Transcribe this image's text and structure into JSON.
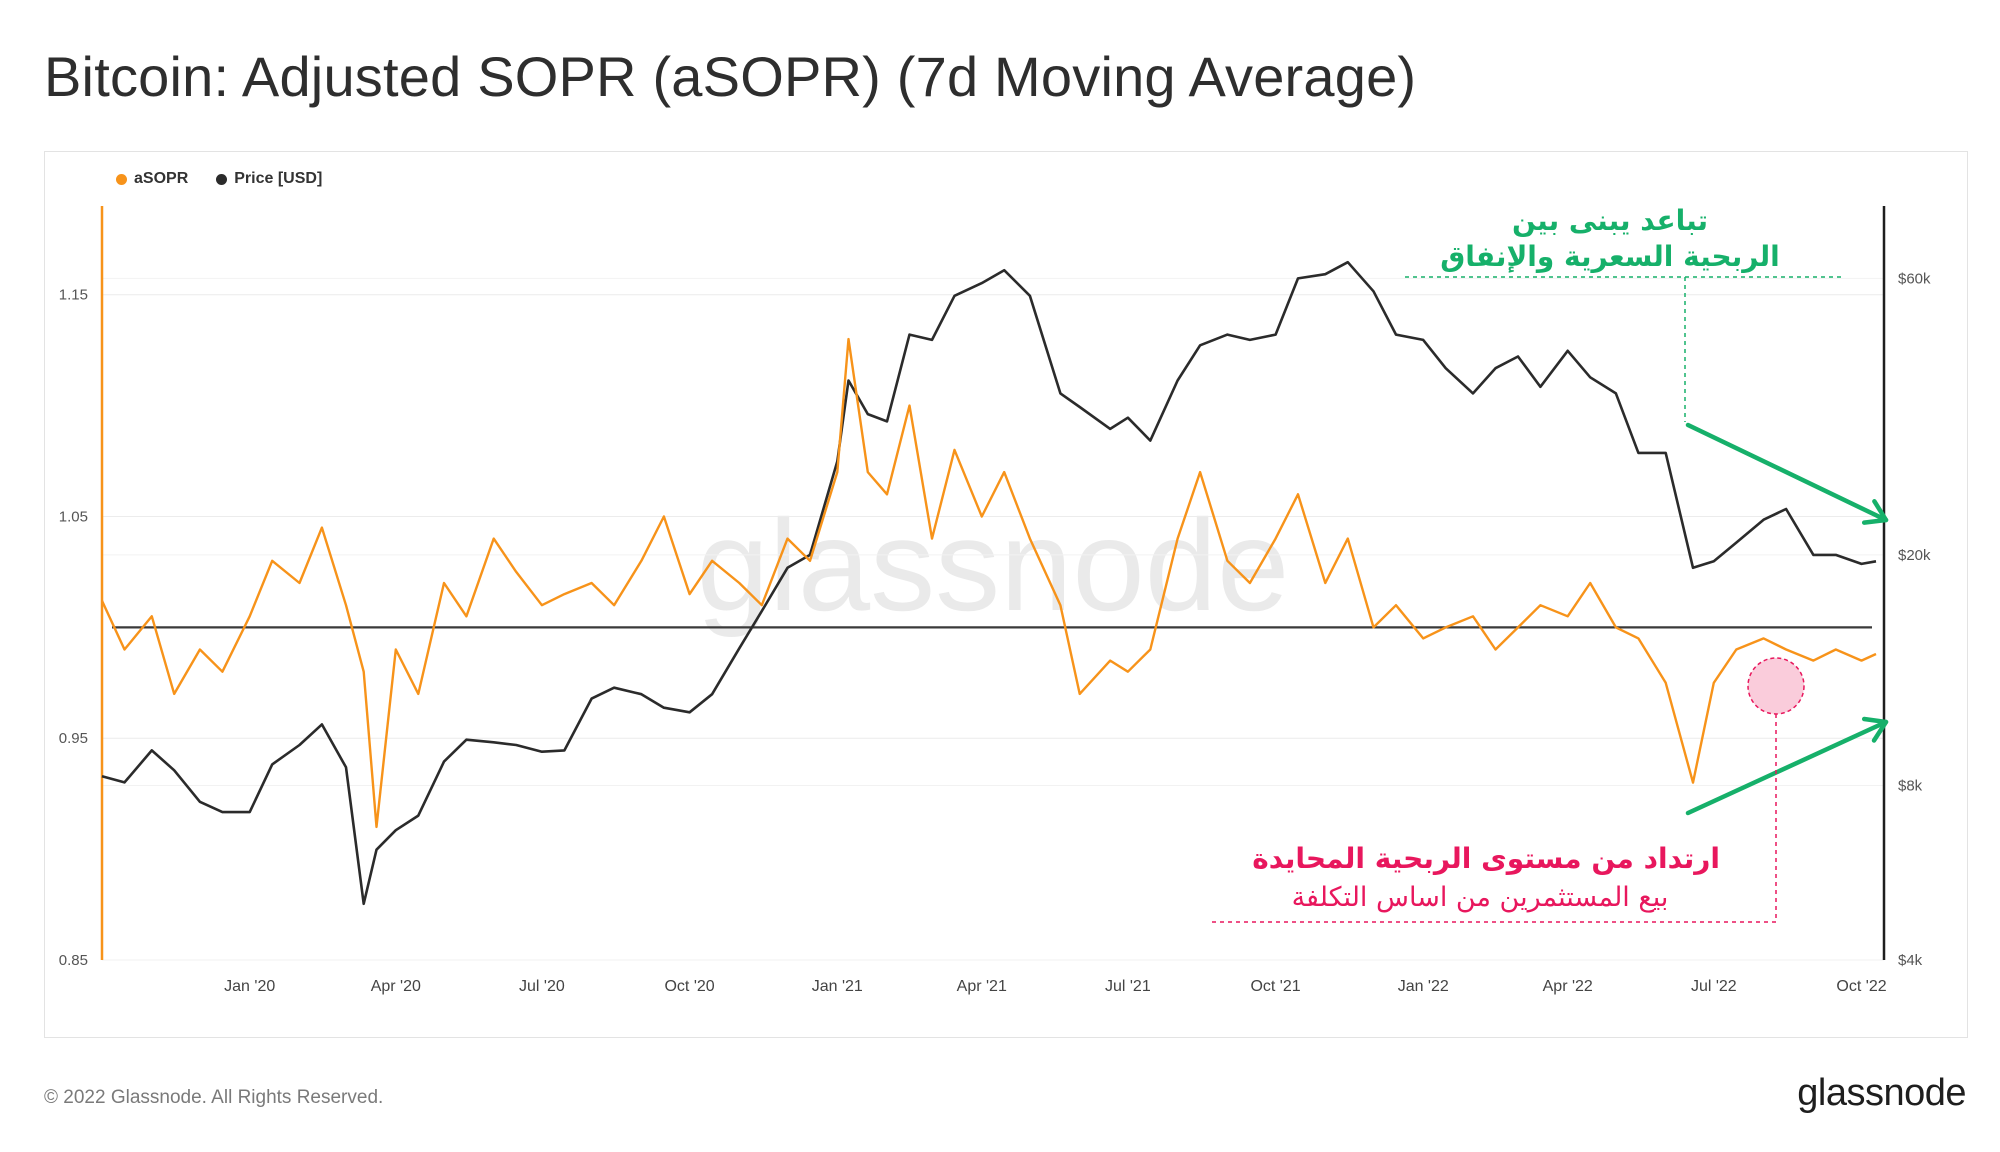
{
  "title": "Bitcoin: Adjusted SOPR (aSOPR) (7d Moving Average)",
  "footer": {
    "copyright": "© 2022 Glassnode. All Rights Reserved.",
    "logo": "glassnode"
  },
  "watermark": "glassnode",
  "legend": [
    {
      "label": "aSOPR",
      "color": "#f7931a"
    },
    {
      "label": "Price [USD]",
      "color": "#2b2b2b"
    }
  ],
  "annotations": {
    "divergence_line1": "تباعد يبنى بين",
    "divergence_line2": "الربحية السعرية والإنفاق",
    "rebound_line1": "ارتداد من مستوى الربحية المحايدة",
    "rebound_line2": "بيع المستثمرين من اساس التكلفة",
    "green_color": "#16b06a",
    "red_color": "#e8175d"
  },
  "chart_data": {
    "type": "line",
    "title": "Bitcoin: Adjusted SOPR (aSOPR) (7d Moving Average)",
    "xlabel": "",
    "x_range": [
      "2019-10-01",
      "2022-10-15"
    ],
    "x_ticks": [
      "Jan '20",
      "Apr '20",
      "Jul '20",
      "Oct '20",
      "Jan '21",
      "Apr '21",
      "Jul '21",
      "Oct '21",
      "Jan '22",
      "Apr '22",
      "Jul '22",
      "Oct '22"
    ],
    "left_axis": {
      "label": "aSOPR",
      "range": [
        0.85,
        1.19
      ],
      "ticks": [
        "0.85",
        "0.95",
        "1.05",
        "1.15"
      ]
    },
    "right_axis": {
      "label": "Price [USD]",
      "scale": "log",
      "range": [
        4000,
        80000
      ],
      "ticks": [
        "$4k",
        "$8k",
        "$20k",
        "$60k"
      ]
    },
    "reference_line": {
      "axis": "left",
      "value": 1.0
    },
    "grid": true,
    "legend_position": "top-left",
    "series": [
      {
        "name": "aSOPR",
        "axis": "left",
        "color": "#f7931a",
        "x": [
          "2019-10-01",
          "2019-10-15",
          "2019-11-01",
          "2019-11-15",
          "2019-12-01",
          "2019-12-15",
          "2020-01-01",
          "2020-01-15",
          "2020-02-01",
          "2020-02-15",
          "2020-03-01",
          "2020-03-12",
          "2020-03-20",
          "2020-04-01",
          "2020-04-15",
          "2020-05-01",
          "2020-05-15",
          "2020-06-01",
          "2020-06-15",
          "2020-07-01",
          "2020-07-15",
          "2020-08-01",
          "2020-08-15",
          "2020-09-01",
          "2020-09-15",
          "2020-10-01",
          "2020-10-15",
          "2020-11-01",
          "2020-11-15",
          "2020-12-01",
          "2020-12-15",
          "2021-01-01",
          "2021-01-08",
          "2021-01-20",
          "2021-02-01",
          "2021-02-15",
          "2021-03-01",
          "2021-03-15",
          "2021-04-01",
          "2021-04-15",
          "2021-05-01",
          "2021-05-20",
          "2021-06-01",
          "2021-06-20",
          "2021-07-01",
          "2021-07-15",
          "2021-08-01",
          "2021-08-15",
          "2021-09-01",
          "2021-09-15",
          "2021-10-01",
          "2021-10-15",
          "2021-11-01",
          "2021-11-15",
          "2021-12-01",
          "2021-12-15",
          "2022-01-01",
          "2022-01-15",
          "2022-02-01",
          "2022-02-15",
          "2022-03-01",
          "2022-03-15",
          "2022-04-01",
          "2022-04-15",
          "2022-05-01",
          "2022-05-15",
          "2022-06-01",
          "2022-06-18",
          "2022-07-01",
          "2022-07-15",
          "2022-08-01",
          "2022-08-15",
          "2022-09-01",
          "2022-09-15",
          "2022-10-01",
          "2022-10-10"
        ],
        "values": [
          1.012,
          0.99,
          1.005,
          0.97,
          0.99,
          0.98,
          1.005,
          1.03,
          1.02,
          1.045,
          1.01,
          0.98,
          0.91,
          0.99,
          0.97,
          1.02,
          1.005,
          1.04,
          1.025,
          1.01,
          1.015,
          1.02,
          1.01,
          1.03,
          1.05,
          1.015,
          1.03,
          1.02,
          1.01,
          1.04,
          1.03,
          1.07,
          1.13,
          1.07,
          1.06,
          1.1,
          1.04,
          1.08,
          1.05,
          1.07,
          1.04,
          1.01,
          0.97,
          0.985,
          0.98,
          0.99,
          1.04,
          1.07,
          1.03,
          1.02,
          1.04,
          1.06,
          1.02,
          1.04,
          1.0,
          1.01,
          0.995,
          1.0,
          1.005,
          0.99,
          1.0,
          1.01,
          1.005,
          1.02,
          1.0,
          0.995,
          0.975,
          0.93,
          0.975,
          0.99,
          0.995,
          0.99,
          0.985,
          0.99,
          0.985,
          0.988
        ]
      },
      {
        "name": "Price [USD]",
        "axis": "right",
        "color": "#2b2b2b",
        "x": [
          "2019-10-01",
          "2019-10-15",
          "2019-11-01",
          "2019-11-15",
          "2019-12-01",
          "2019-12-15",
          "2020-01-01",
          "2020-01-15",
          "2020-02-01",
          "2020-02-15",
          "2020-03-01",
          "2020-03-12",
          "2020-03-20",
          "2020-04-01",
          "2020-04-15",
          "2020-05-01",
          "2020-05-15",
          "2020-06-01",
          "2020-06-15",
          "2020-07-01",
          "2020-07-15",
          "2020-08-01",
          "2020-08-15",
          "2020-09-01",
          "2020-09-15",
          "2020-10-01",
          "2020-10-15",
          "2020-11-01",
          "2020-11-15",
          "2020-12-01",
          "2020-12-15",
          "2021-01-01",
          "2021-01-08",
          "2021-01-20",
          "2021-02-01",
          "2021-02-15",
          "2021-03-01",
          "2021-03-15",
          "2021-04-01",
          "2021-04-15",
          "2021-05-01",
          "2021-05-20",
          "2021-06-01",
          "2021-06-20",
          "2021-07-01",
          "2021-07-15",
          "2021-08-01",
          "2021-08-15",
          "2021-09-01",
          "2021-09-15",
          "2021-10-01",
          "2021-10-15",
          "2021-11-01",
          "2021-11-15",
          "2021-12-01",
          "2021-12-15",
          "2022-01-01",
          "2022-01-15",
          "2022-02-01",
          "2022-02-15",
          "2022-03-01",
          "2022-03-15",
          "2022-04-01",
          "2022-04-15",
          "2022-05-01",
          "2022-05-15",
          "2022-06-01",
          "2022-06-18",
          "2022-07-01",
          "2022-07-15",
          "2022-08-01",
          "2022-08-15",
          "2022-09-01",
          "2022-09-15",
          "2022-10-01",
          "2022-10-10"
        ],
        "values": [
          8300,
          8100,
          9200,
          8500,
          7500,
          7200,
          7200,
          8700,
          9400,
          10200,
          8600,
          5000,
          6200,
          6700,
          7100,
          8800,
          9600,
          9500,
          9400,
          9150,
          9200,
          11300,
          11800,
          11500,
          10900,
          10700,
          11500,
          13800,
          16000,
          19000,
          20000,
          29000,
          40000,
          35000,
          34000,
          48000,
          47000,
          56000,
          58900,
          62000,
          56000,
          38000,
          36000,
          33000,
          34500,
          31500,
          40000,
          46000,
          48000,
          47000,
          48000,
          60000,
          61000,
          64000,
          57000,
          48000,
          47000,
          42000,
          38000,
          42000,
          44000,
          39000,
          45000,
          40500,
          38000,
          30000,
          30000,
          19000,
          19500,
          21000,
          23000,
          24000,
          20000,
          20000,
          19300,
          19500
        ]
      }
    ]
  }
}
